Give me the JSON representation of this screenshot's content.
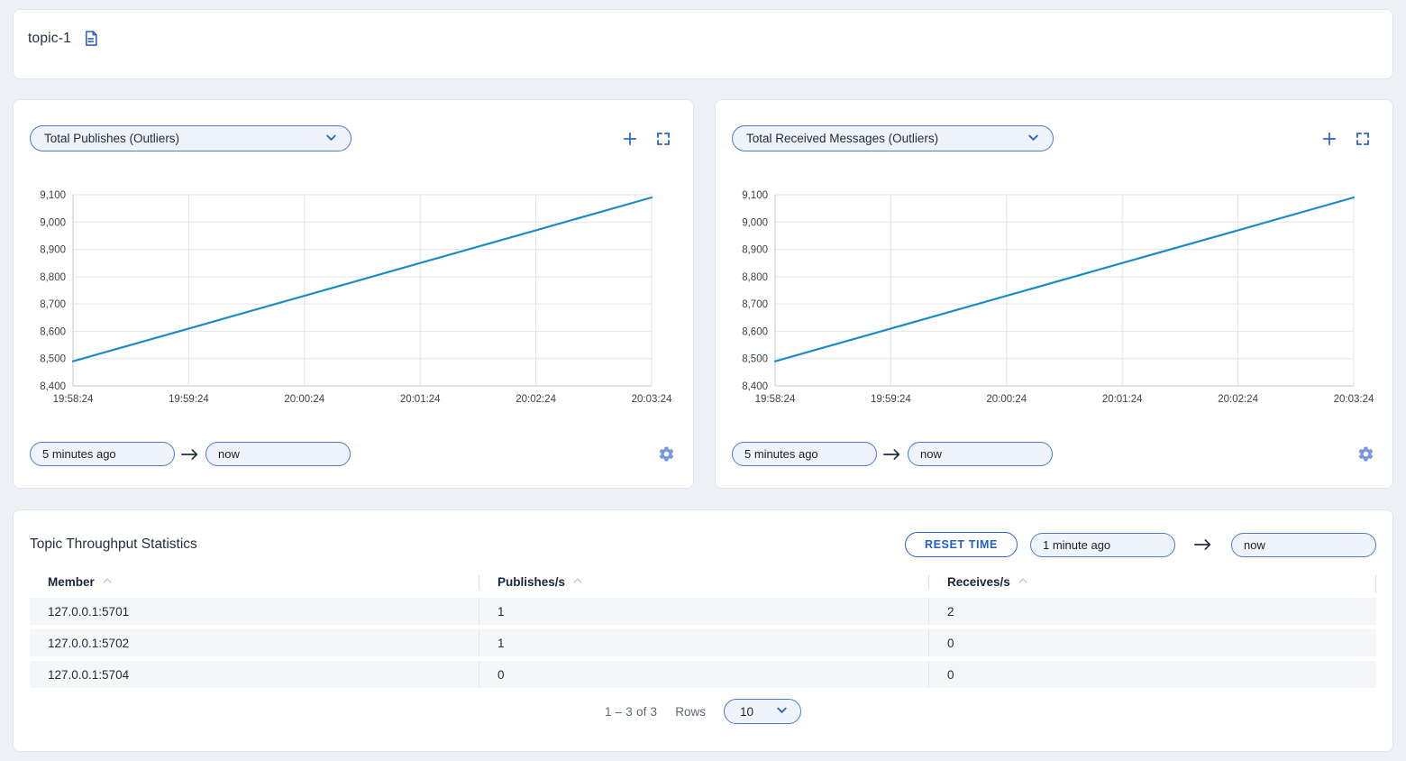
{
  "colors": {
    "accent_blue": "#2a62c9",
    "line_blue": "#1d8bc4",
    "input_bg": "#eef3fc",
    "input_border": "#4f7bce",
    "page_bg": "#edf0f5"
  },
  "header": {
    "title": "topic-1",
    "icon": "document-icon"
  },
  "charts": [
    {
      "metric_label": "Total Publishes (Outliers)",
      "time_from": "5 minutes ago",
      "time_to": "now",
      "icons": [
        "plus-icon",
        "fullscreen-icon",
        "chevron-down-icon",
        "gear-icon",
        "arrow-right-icon"
      ]
    },
    {
      "metric_label": "Total Received Messages (Outliers)",
      "time_from": "5 minutes ago",
      "time_to": "now",
      "icons": [
        "plus-icon",
        "fullscreen-icon",
        "chevron-down-icon",
        "gear-icon",
        "arrow-right-icon"
      ]
    }
  ],
  "chart_data": [
    {
      "type": "line",
      "title": "Total Publishes (Outliers)",
      "x": [
        "19:58:24",
        "19:59:24",
        "20:00:24",
        "20:01:24",
        "20:02:24",
        "20:03:24"
      ],
      "series": [
        {
          "name": "Total Publishes",
          "values": [
            8490,
            8610,
            8730,
            8850,
            8970,
            9090
          ]
        }
      ],
      "ylim": [
        8400,
        9100
      ],
      "ystep": 100,
      "grid": true,
      "legend": "none",
      "line_color": "#1d8bc4"
    },
    {
      "type": "line",
      "title": "Total Received Messages (Outliers)",
      "x": [
        "19:58:24",
        "19:59:24",
        "20:00:24",
        "20:01:24",
        "20:02:24",
        "20:03:24"
      ],
      "series": [
        {
          "name": "Total Received Messages",
          "values": [
            8490,
            8610,
            8730,
            8850,
            8970,
            9090
          ]
        }
      ],
      "ylim": [
        8400,
        9100
      ],
      "ystep": 100,
      "grid": true,
      "legend": "none",
      "line_color": "#1d8bc4"
    }
  ],
  "table": {
    "title": "Topic Throughput Statistics",
    "reset_button_label": "RESET TIME",
    "time_from": "1 minute ago",
    "time_to": "now",
    "columns": [
      {
        "label": "Member",
        "sort_icon": "chevron-up-icon"
      },
      {
        "label": "Publishes/s",
        "sort_icon": "chevron-up-icon"
      },
      {
        "label": "Receives/s",
        "sort_icon": "chevron-up-icon"
      }
    ],
    "rows": [
      [
        "127.0.0.1:5701",
        "1",
        "2"
      ],
      [
        "127.0.0.1:5702",
        "1",
        "0"
      ],
      [
        "127.0.0.1:5704",
        "0",
        "0"
      ]
    ],
    "pagination": {
      "range_text": "1 – 3 of 3",
      "rows_label": "Rows",
      "rows_per_page": "10"
    }
  }
}
